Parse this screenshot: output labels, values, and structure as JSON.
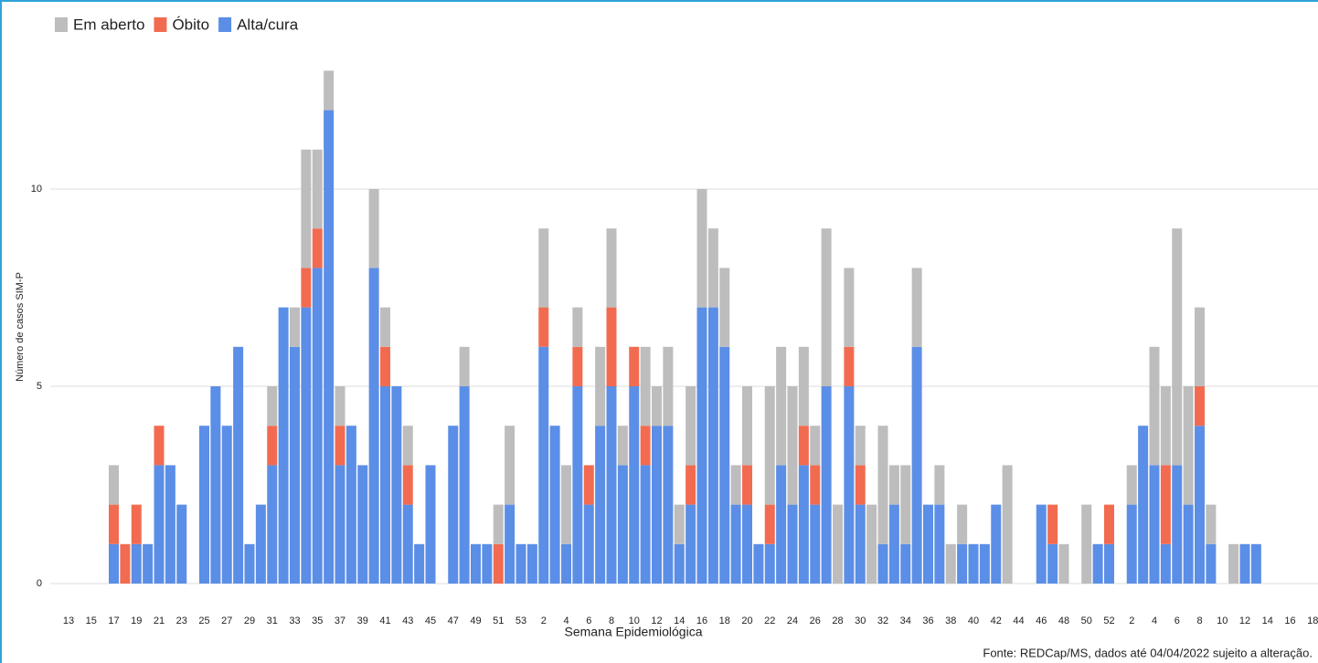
{
  "chart_data": {
    "type": "stacked-bar",
    "y_label": "Número de casos SIM-P",
    "x_label": "Semana Epidemiológica",
    "source": "Fonte: REDCap/MS, dados até 04/04/2022 sujeito a alteração.",
    "categories": [
      "13",
      null,
      "15",
      null,
      "17",
      null,
      "19",
      null,
      "21",
      null,
      "23",
      null,
      "25",
      null,
      "27",
      null,
      "29",
      null,
      "31",
      null,
      "33",
      null,
      "35",
      null,
      "37",
      null,
      "39",
      null,
      "41",
      null,
      "43",
      null,
      "45",
      null,
      "47",
      null,
      "49",
      null,
      "51",
      null,
      "53",
      null,
      "2",
      null,
      "4",
      null,
      "6",
      null,
      "8",
      null,
      "10",
      null,
      "12",
      null,
      "14",
      null,
      "16",
      null,
      "18",
      null,
      "20",
      null,
      "22",
      null,
      "24",
      null,
      "26",
      null,
      "28",
      null,
      "30",
      null,
      "32",
      null,
      "34",
      null,
      "36",
      null,
      "38",
      null,
      "40",
      null,
      "42",
      null,
      "44",
      null,
      "46",
      null,
      "48",
      null,
      "50",
      null,
      "52",
      null,
      "2",
      null,
      "4",
      null,
      "6",
      null,
      "8",
      null,
      "10",
      null,
      "12",
      null,
      "14",
      null,
      "16",
      null,
      "18"
    ],
    "series": [
      {
        "name": "Em aberto",
        "color": "#bdbdbd",
        "values": [
          0,
          0,
          0,
          0,
          1,
          0,
          0,
          0,
          0,
          0,
          0,
          0,
          0,
          0,
          0,
          0,
          0,
          0,
          1,
          0,
          1,
          3,
          2,
          1,
          1,
          0,
          0,
          2,
          1,
          0,
          1,
          0,
          0,
          0,
          0,
          1,
          0,
          0,
          1,
          2,
          0,
          0,
          2,
          0,
          2,
          1,
          0,
          2,
          2,
          1,
          0,
          2,
          1,
          2,
          1,
          2,
          3,
          2,
          2,
          1,
          2,
          0,
          3,
          3,
          3,
          2,
          1,
          4,
          2,
          2,
          1,
          2,
          3,
          1,
          2,
          2,
          0,
          1,
          1,
          1,
          0,
          0,
          0,
          3,
          0,
          0,
          0,
          0,
          1,
          0,
          2,
          0,
          0,
          0,
          1,
          0,
          3,
          2,
          6,
          3,
          2,
          1,
          0,
          1,
          0,
          0,
          0,
          0,
          0,
          0,
          0
        ]
      },
      {
        "name": "Óbito",
        "color": "#f26b50",
        "values": [
          0,
          0,
          0,
          0,
          1,
          1,
          1,
          0,
          1,
          0,
          0,
          0,
          0,
          0,
          0,
          0,
          0,
          0,
          1,
          0,
          0,
          1,
          1,
          0,
          1,
          0,
          0,
          0,
          1,
          0,
          1,
          0,
          0,
          0,
          0,
          0,
          0,
          0,
          1,
          0,
          0,
          0,
          1,
          0,
          0,
          1,
          1,
          0,
          2,
          0,
          1,
          1,
          0,
          0,
          0,
          1,
          0,
          0,
          0,
          0,
          1,
          0,
          1,
          0,
          0,
          1,
          1,
          0,
          0,
          1,
          1,
          0,
          0,
          0,
          0,
          0,
          0,
          0,
          0,
          0,
          0,
          0,
          0,
          0,
          0,
          0,
          0,
          1,
          0,
          0,
          0,
          0,
          1,
          0,
          0,
          0,
          0,
          2,
          0,
          0,
          1,
          0,
          0,
          0,
          0,
          0,
          0,
          0,
          0,
          0,
          0
        ]
      },
      {
        "name": "Alta/cura",
        "color": "#5b8ee6",
        "values": [
          0,
          0,
          0,
          0,
          1,
          0,
          1,
          1,
          3,
          3,
          2,
          0,
          4,
          5,
          4,
          6,
          1,
          2,
          3,
          7,
          6,
          7,
          8,
          12,
          3,
          4,
          3,
          8,
          5,
          5,
          2,
          1,
          3,
          0,
          4,
          5,
          1,
          1,
          0,
          2,
          1,
          1,
          6,
          4,
          1,
          5,
          2,
          4,
          5,
          3,
          5,
          3,
          4,
          4,
          1,
          2,
          7,
          7,
          6,
          2,
          2,
          1,
          1,
          3,
          2,
          3,
          2,
          5,
          0,
          5,
          2,
          0,
          1,
          2,
          1,
          6,
          2,
          2,
          0,
          1,
          1,
          1,
          2,
          0,
          0,
          0,
          2,
          1,
          0,
          0,
          0,
          1,
          1,
          0,
          2,
          4,
          3,
          1,
          3,
          2,
          4,
          1,
          0,
          0,
          1,
          1,
          0,
          0,
          0,
          0,
          0
        ]
      }
    ],
    "ylim": [
      0,
      13
    ],
    "yticks": [
      0,
      5,
      10
    ],
    "grid": true
  }
}
